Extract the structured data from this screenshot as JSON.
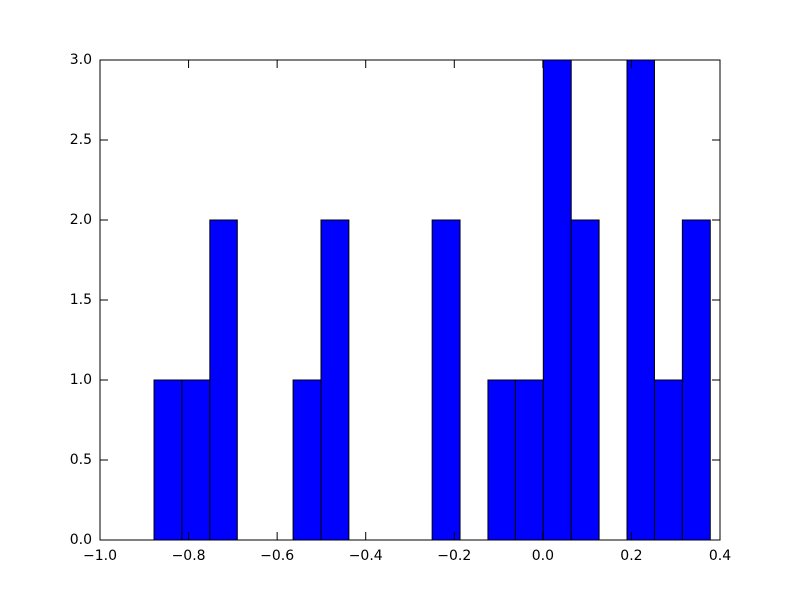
{
  "chart_data": {
    "type": "histogram",
    "bins": [
      -0.878,
      -0.815,
      -0.752,
      -0.69,
      -0.627,
      -0.564,
      -0.501,
      -0.438,
      -0.376,
      -0.313,
      -0.25,
      -0.187,
      -0.124,
      -0.062,
      0.001,
      0.064,
      0.127,
      0.19,
      0.252,
      0.315,
      0.378
    ],
    "counts": [
      1,
      1,
      2,
      0,
      0,
      1,
      2,
      0,
      0,
      0,
      2,
      0,
      1,
      1,
      3,
      2,
      0,
      3,
      1,
      2
    ],
    "color": "#0000ff",
    "xlim": [
      -1.0,
      0.4
    ],
    "xticks": [
      {
        "value": -1.0,
        "label": "−1.0"
      },
      {
        "value": -0.8,
        "label": "−0.8"
      },
      {
        "value": -0.6,
        "label": "−0.6"
      },
      {
        "value": -0.4,
        "label": "−0.4"
      },
      {
        "value": -0.2,
        "label": "−0.2"
      },
      {
        "value": 0.0,
        "label": "0.0"
      },
      {
        "value": 0.2,
        "label": "0.2"
      },
      {
        "value": 0.4,
        "label": "0.4"
      }
    ],
    "ylim": [
      0,
      3
    ],
    "yticks": [
      {
        "value": 0,
        "label": "0.0"
      },
      {
        "value": 0.5,
        "label": "0.5"
      },
      {
        "value": 1,
        "label": "1.0"
      },
      {
        "value": 1.5,
        "label": "1.5"
      },
      {
        "value": 2,
        "label": "2.0"
      },
      {
        "value": 2.5,
        "label": "2.5"
      },
      {
        "value": 3,
        "label": "3.0"
      }
    ]
  }
}
